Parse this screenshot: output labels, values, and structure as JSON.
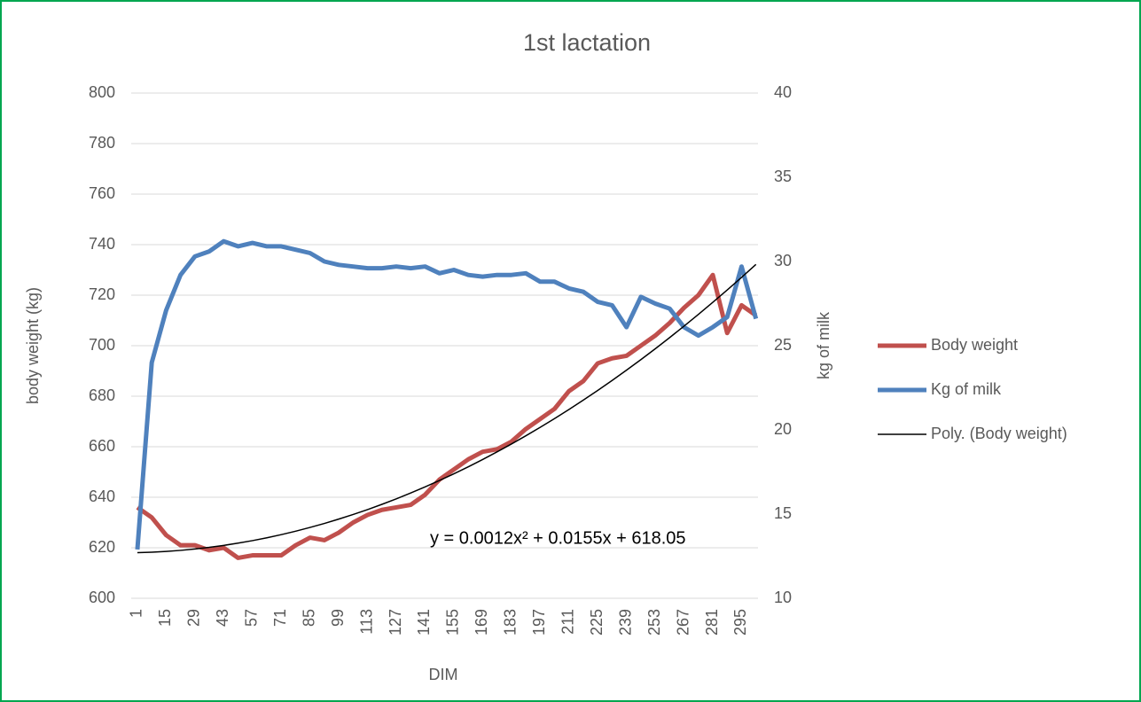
{
  "chart_data": {
    "type": "line",
    "title": "1st lactation",
    "x_label": "DIM",
    "y_label": "body weight (kg)",
    "y2_label": "kg of milk",
    "x": [
      1,
      8,
      15,
      22,
      29,
      36,
      43,
      50,
      57,
      64,
      71,
      78,
      85,
      92,
      99,
      106,
      113,
      120,
      127,
      134,
      141,
      148,
      155,
      162,
      169,
      176,
      183,
      190,
      197,
      204,
      211,
      218,
      225,
      232,
      239,
      246,
      253,
      260,
      267,
      274,
      281,
      288,
      295,
      302
    ],
    "series": [
      {
        "name": "Body weight",
        "color": "#c0504d",
        "axis": "y",
        "values": [
          636,
          632,
          625,
          621,
          621,
          619,
          620,
          616,
          617,
          617,
          617,
          621,
          624,
          623,
          626,
          630,
          633,
          635,
          636,
          637,
          641,
          647,
          651,
          655,
          658,
          659,
          662,
          667,
          671,
          675,
          682,
          686,
          693,
          695,
          696,
          700,
          704,
          709,
          715,
          720,
          728,
          705,
          716,
          712
        ]
      },
      {
        "name": "Kg of milk",
        "color": "#4f81bd",
        "axis": "y2",
        "values": [
          12.9,
          24,
          27.1,
          29.2,
          30.3,
          30.6,
          31.2,
          30.9,
          31.1,
          30.9,
          30.9,
          30.7,
          30.5,
          30.0,
          29.8,
          29.7,
          29.6,
          29.6,
          29.7,
          29.6,
          29.7,
          29.3,
          29.5,
          29.2,
          29.1,
          29.2,
          29.2,
          29.3,
          28.8,
          28.8,
          28.4,
          28.2,
          27.6,
          27.4,
          26.1,
          27.9,
          27.5,
          27.2,
          26.1,
          25.6,
          26.1,
          26.7,
          29.7,
          26.6
        ]
      },
      {
        "name": "Poly. (Body weight)",
        "color": "#000000",
        "axis": "y",
        "trendline": true,
        "values": [
          618.07,
          618.25,
          618.55,
          618.97,
          619.51,
          620.16,
          620.94,
          621.83,
          622.83,
          623.96,
          625.2,
          626.56,
          628.04,
          629.63,
          631.35,
          633.18,
          635.12,
          637.19,
          639.37,
          641.67,
          644.09,
          646.63,
          649.28,
          652.05,
          654.94,
          657.95,
          661.07,
          664.32,
          667.67,
          671.15,
          674.75,
          678.46,
          682.29,
          686.24,
          690.3,
          694.48,
          698.78,
          703.2,
          707.74,
          712.39,
          717.16,
          722.05,
          727.05,
          732.18
        ]
      }
    ],
    "annotation": "y = 0.0012x² + 0.0155x + 618.05",
    "xlim": [
      -2,
      303
    ],
    "xticks": [
      1,
      15,
      29,
      43,
      57,
      71,
      85,
      99,
      113,
      127,
      141,
      155,
      169,
      183,
      197,
      211,
      225,
      239,
      253,
      267,
      281,
      295
    ],
    "ylim": [
      600,
      800
    ],
    "yticks": [
      600,
      620,
      640,
      660,
      680,
      700,
      720,
      740,
      760,
      780,
      800
    ],
    "y2lim": [
      10,
      40
    ],
    "y2ticks": [
      10,
      15,
      20,
      25,
      30,
      35,
      40
    ],
    "grid": true,
    "legend": "right"
  }
}
